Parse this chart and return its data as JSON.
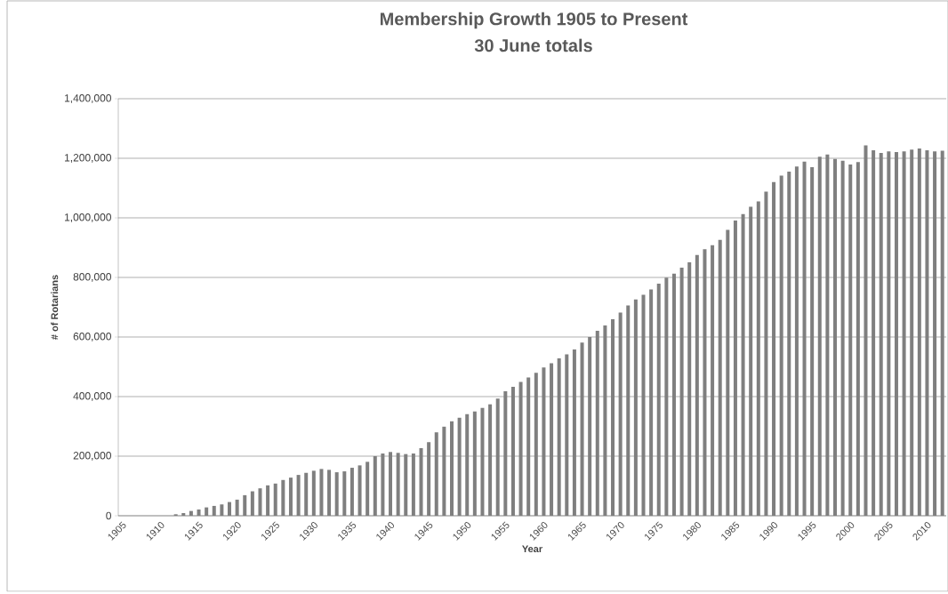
{
  "chart_data": {
    "type": "bar",
    "title": "Membership Growth 1905 to Present",
    "subtitle": "30 June totals",
    "xlabel": "Year",
    "ylabel": "# of Rotarians",
    "categories": [
      "1905",
      null,
      null,
      null,
      null,
      "1910",
      null,
      null,
      null,
      null,
      "1915",
      null,
      null,
      null,
      null,
      "1920",
      null,
      null,
      null,
      null,
      "1925",
      null,
      null,
      null,
      null,
      "1930",
      null,
      null,
      null,
      null,
      "1935",
      null,
      null,
      null,
      null,
      "1940",
      null,
      null,
      null,
      null,
      "1945",
      null,
      null,
      null,
      null,
      "1950",
      null,
      null,
      null,
      null,
      "1955",
      null,
      null,
      null,
      null,
      "1960",
      null,
      null,
      null,
      null,
      "1965",
      null,
      null,
      null,
      null,
      "1970",
      null,
      null,
      null,
      null,
      "1975",
      null,
      null,
      null,
      null,
      "1980",
      null,
      null,
      null,
      null,
      "1985",
      null,
      null,
      null,
      null,
      "1990",
      null,
      null,
      null,
      null,
      "1995",
      null,
      null,
      null,
      null,
      "2000",
      null,
      null,
      null,
      null,
      "2005",
      null,
      null,
      null,
      null,
      "2010",
      null,
      null
    ],
    "values": [
      0,
      0,
      0,
      0,
      0,
      0,
      0,
      5000,
      9000,
      16000,
      21000,
      28000,
      33000,
      38000,
      46000,
      54000,
      69000,
      82000,
      92000,
      102000,
      108000,
      120000,
      128000,
      137000,
      144000,
      151000,
      157000,
      154000,
      146000,
      149000,
      161000,
      169000,
      181000,
      200000,
      209000,
      214000,
      211000,
      207000,
      209000,
      227000,
      247000,
      280000,
      299000,
      317000,
      329000,
      341000,
      350000,
      362000,
      374000,
      393000,
      418000,
      433000,
      449000,
      464000,
      480000,
      498000,
      512000,
      528000,
      542000,
      558000,
      581000,
      600000,
      621000,
      639000,
      660000,
      682000,
      706000,
      726000,
      742000,
      760000,
      779000,
      799000,
      813000,
      833000,
      851000,
      875000,
      895000,
      908000,
      926000,
      960000,
      991000,
      1013000,
      1037000,
      1055000,
      1088000,
      1120000,
      1142000,
      1155000,
      1172000,
      1189000,
      1170000,
      1205000,
      1213000,
      1198000,
      1192000,
      1179000,
      1187000,
      1243000,
      1227000,
      1218000,
      1223000,
      1221000,
      1223000,
      1229000,
      1233000,
      1227000,
      1223000,
      1225000
    ],
    "color": "#7f7f7f",
    "ylim": [
      0,
      1400000
    ],
    "yticks": [
      0,
      {
        "value": 200000,
        "label": "200,000"
      },
      {
        "value": 400000,
        "label": "400,000"
      },
      {
        "value": 600000,
        "label": "600,000"
      },
      {
        "value": 800000,
        "label": "800,000"
      },
      {
        "value": 1000000,
        "label": "1,000,000"
      },
      {
        "value": 1200000,
        "label": "1,200,000"
      },
      {
        "value": 1400000,
        "label": "1,400,000"
      }
    ],
    "grid": "y"
  }
}
